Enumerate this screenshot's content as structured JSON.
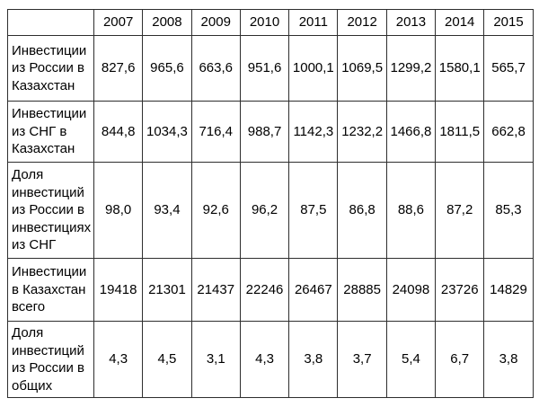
{
  "colors": {
    "background": "#ffffff",
    "border": "#2e2e2e",
    "text": "#000000"
  },
  "chart_data": {
    "type": "table",
    "columns": [
      "",
      "2007",
      "2008",
      "2009",
      "2010",
      "2011",
      "2012",
      "2013",
      "2014",
      "2015"
    ],
    "rows": [
      {
        "label": "Инвестиции из России в Казахстан",
        "values": [
          "827,6",
          "965,6",
          "663,6",
          "951,6",
          "1000,1",
          "1069,5",
          "1299,2",
          "1580,1",
          "565,7"
        ]
      },
      {
        "label": "Инвестиции из СНГ в Казахстан",
        "values": [
          "844,8",
          "1034,3",
          "716,4",
          "988,7",
          "1142,3",
          "1232,2",
          "1466,8",
          "1811,5",
          "662,8"
        ]
      },
      {
        "label": "Доля инвестиций из России в инвестициях из СНГ",
        "values": [
          "98,0",
          "93,4",
          "92,6",
          "96,2",
          "87,5",
          "86,8",
          "88,6",
          "87,2",
          "85,3"
        ]
      },
      {
        "label": "Инвестиции в Казахстан всего",
        "values": [
          "19418",
          "21301",
          "21437",
          "22246",
          "26467",
          "28885",
          "24098",
          "23726",
          "14829"
        ]
      },
      {
        "label": "Доля инвестиций из России в общих",
        "values": [
          "4,3",
          "4,5",
          "3,1",
          "4,3",
          "3,8",
          "3,7",
          "5,4",
          "6,7",
          "3,8"
        ]
      }
    ]
  }
}
